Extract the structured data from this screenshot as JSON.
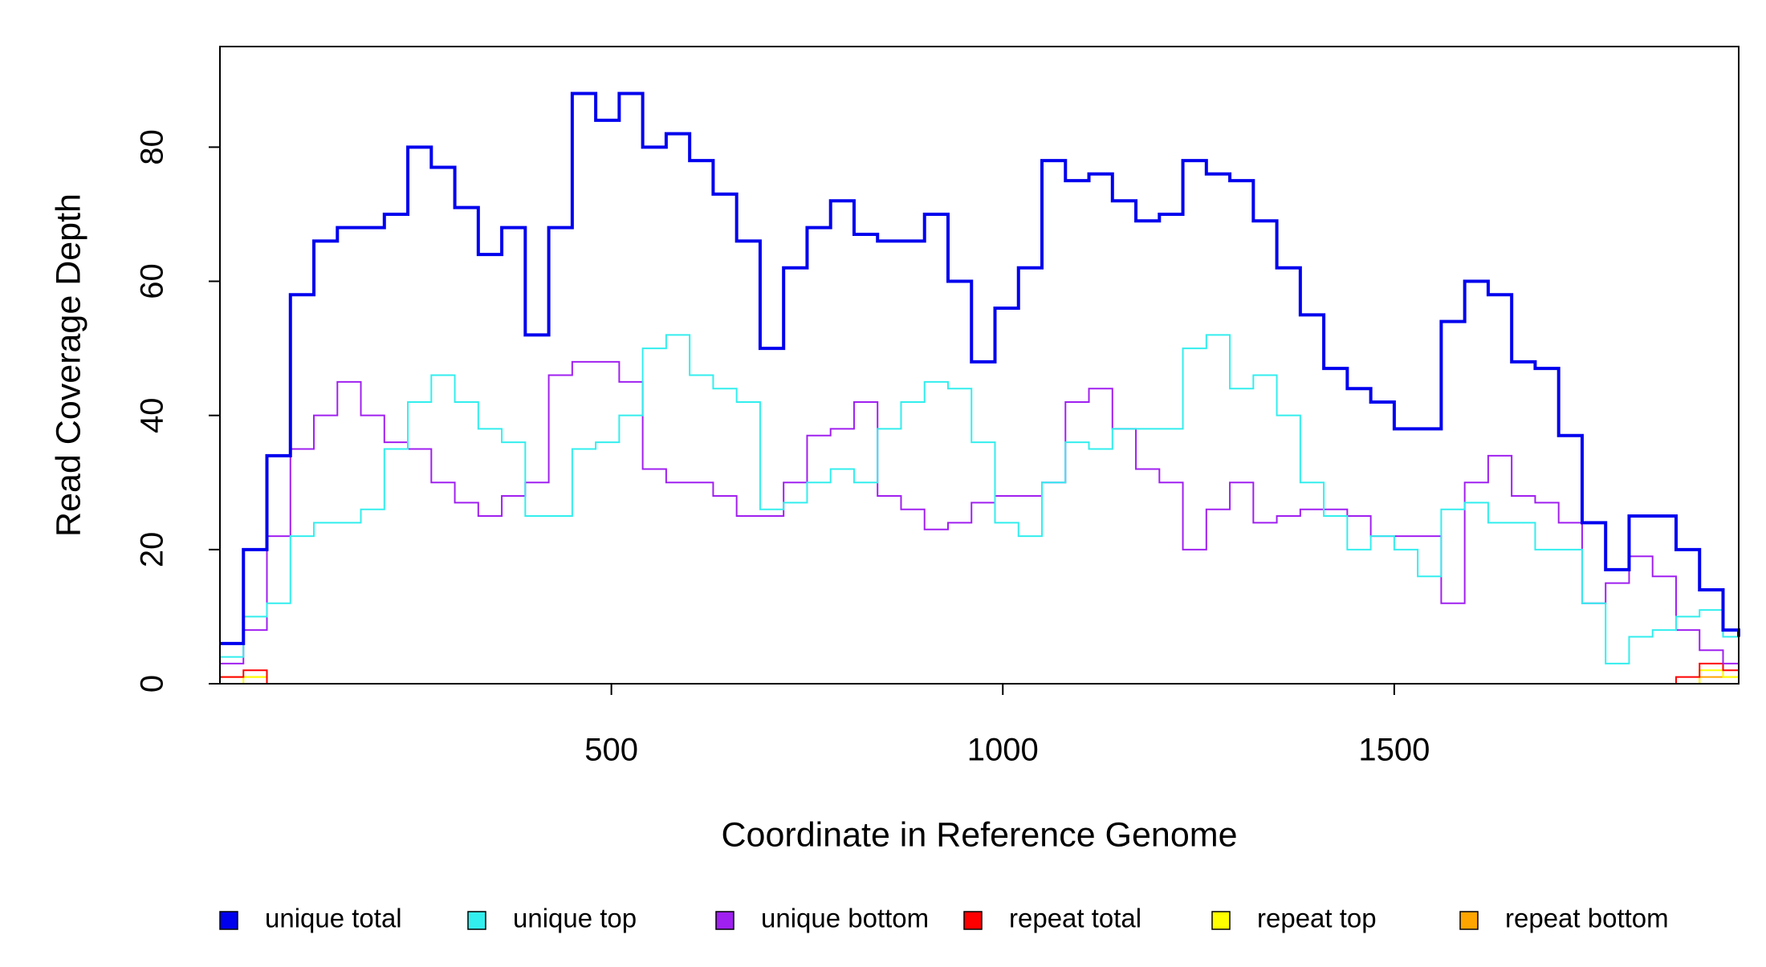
{
  "chart_data": {
    "type": "line",
    "drawstyle": "steps",
    "x_label": "Coordinate in Reference Genome",
    "y_label": "Read Coverage Depth",
    "x": [
      0,
      30,
      60,
      90,
      120,
      150,
      180,
      210,
      240,
      270,
      300,
      330,
      360,
      390,
      420,
      450,
      480,
      510,
      540,
      570,
      600,
      630,
      660,
      690,
      720,
      750,
      780,
      810,
      840,
      870,
      900,
      930,
      960,
      990,
      1020,
      1050,
      1080,
      1110,
      1140,
      1170,
      1200,
      1230,
      1260,
      1290,
      1320,
      1350,
      1380,
      1410,
      1440,
      1470,
      1500,
      1530,
      1560,
      1590,
      1620,
      1650,
      1680,
      1710,
      1740,
      1770,
      1800,
      1830,
      1860,
      1890,
      1920,
      1940
    ],
    "xlim": [
      0,
      1940
    ],
    "xticks": [
      500,
      1000,
      1500
    ],
    "ylim": [
      0,
      95
    ],
    "yticks": [
      0,
      20,
      40,
      60,
      80
    ],
    "series": [
      {
        "name": "unique total",
        "color": "#0000ee",
        "values": [
          6,
          20,
          34,
          58,
          66,
          68,
          68,
          70,
          80,
          77,
          71,
          64,
          68,
          52,
          68,
          88,
          84,
          88,
          80,
          82,
          78,
          73,
          66,
          50,
          62,
          68,
          72,
          67,
          66,
          66,
          70,
          60,
          48,
          56,
          62,
          78,
          75,
          76,
          72,
          69,
          70,
          78,
          76,
          75,
          69,
          62,
          55,
          47,
          44,
          42,
          38,
          38,
          54,
          60,
          58,
          48,
          47,
          37,
          24,
          17,
          25,
          25,
          20,
          14,
          8,
          7
        ]
      },
      {
        "name": "unique top",
        "color": "#33eeee",
        "values": [
          4,
          10,
          12,
          22,
          24,
          24,
          26,
          35,
          42,
          46,
          42,
          38,
          36,
          25,
          25,
          35,
          36,
          40,
          50,
          52,
          46,
          44,
          42,
          26,
          27,
          30,
          32,
          30,
          38,
          42,
          45,
          44,
          36,
          24,
          22,
          30,
          36,
          35,
          38,
          38,
          38,
          50,
          52,
          44,
          46,
          40,
          30,
          25,
          20,
          22,
          20,
          16,
          26,
          27,
          24,
          24,
          20,
          20,
          12,
          3,
          7,
          8,
          10,
          11,
          7,
          4
        ]
      },
      {
        "name": "unique bottom",
        "color": "#a020f0",
        "values": [
          3,
          8,
          22,
          35,
          40,
          45,
          40,
          36,
          35,
          30,
          27,
          25,
          28,
          30,
          46,
          48,
          48,
          45,
          32,
          30,
          30,
          28,
          25,
          25,
          30,
          37,
          38,
          42,
          28,
          26,
          23,
          24,
          27,
          28,
          28,
          30,
          42,
          44,
          38,
          32,
          30,
          20,
          26,
          30,
          24,
          25,
          26,
          26,
          25,
          22,
          22,
          22,
          12,
          30,
          34,
          28,
          27,
          24,
          12,
          15,
          19,
          16,
          8,
          5,
          3,
          3
        ]
      },
      {
        "name": "repeat total",
        "color": "#ff0000",
        "values": [
          1,
          2,
          0,
          0,
          0,
          0,
          0,
          0,
          0,
          0,
          0,
          0,
          0,
          0,
          0,
          0,
          0,
          0,
          0,
          0,
          0,
          0,
          0,
          0,
          0,
          0,
          0,
          0,
          0,
          0,
          0,
          0,
          0,
          0,
          0,
          0,
          0,
          0,
          0,
          0,
          0,
          0,
          0,
          0,
          0,
          0,
          0,
          0,
          0,
          0,
          0,
          0,
          0,
          0,
          0,
          0,
          0,
          0,
          0,
          0,
          0,
          0,
          1,
          3,
          2,
          1
        ]
      },
      {
        "name": "repeat top",
        "color": "#ffff00",
        "values": [
          0,
          1,
          0,
          0,
          0,
          0,
          0,
          0,
          0,
          0,
          0,
          0,
          0,
          0,
          0,
          0,
          0,
          0,
          0,
          0,
          0,
          0,
          0,
          0,
          0,
          0,
          0,
          0,
          0,
          0,
          0,
          0,
          0,
          0,
          0,
          0,
          0,
          0,
          0,
          0,
          0,
          0,
          0,
          0,
          0,
          0,
          0,
          0,
          0,
          0,
          0,
          0,
          0,
          0,
          0,
          0,
          0,
          0,
          0,
          0,
          0,
          0,
          0,
          2,
          1,
          0
        ]
      },
      {
        "name": "repeat bottom",
        "color": "#ffa500",
        "values": [
          1,
          1,
          0,
          0,
          0,
          0,
          0,
          0,
          0,
          0,
          0,
          0,
          0,
          0,
          0,
          0,
          0,
          0,
          0,
          0,
          0,
          0,
          0,
          0,
          0,
          0,
          0,
          0,
          0,
          0,
          0,
          0,
          0,
          0,
          0,
          0,
          0,
          0,
          0,
          0,
          0,
          0,
          0,
          0,
          0,
          0,
          0,
          0,
          0,
          0,
          0,
          0,
          0,
          0,
          0,
          0,
          0,
          0,
          0,
          0,
          0,
          0,
          0,
          1,
          1,
          0
        ]
      }
    ]
  }
}
